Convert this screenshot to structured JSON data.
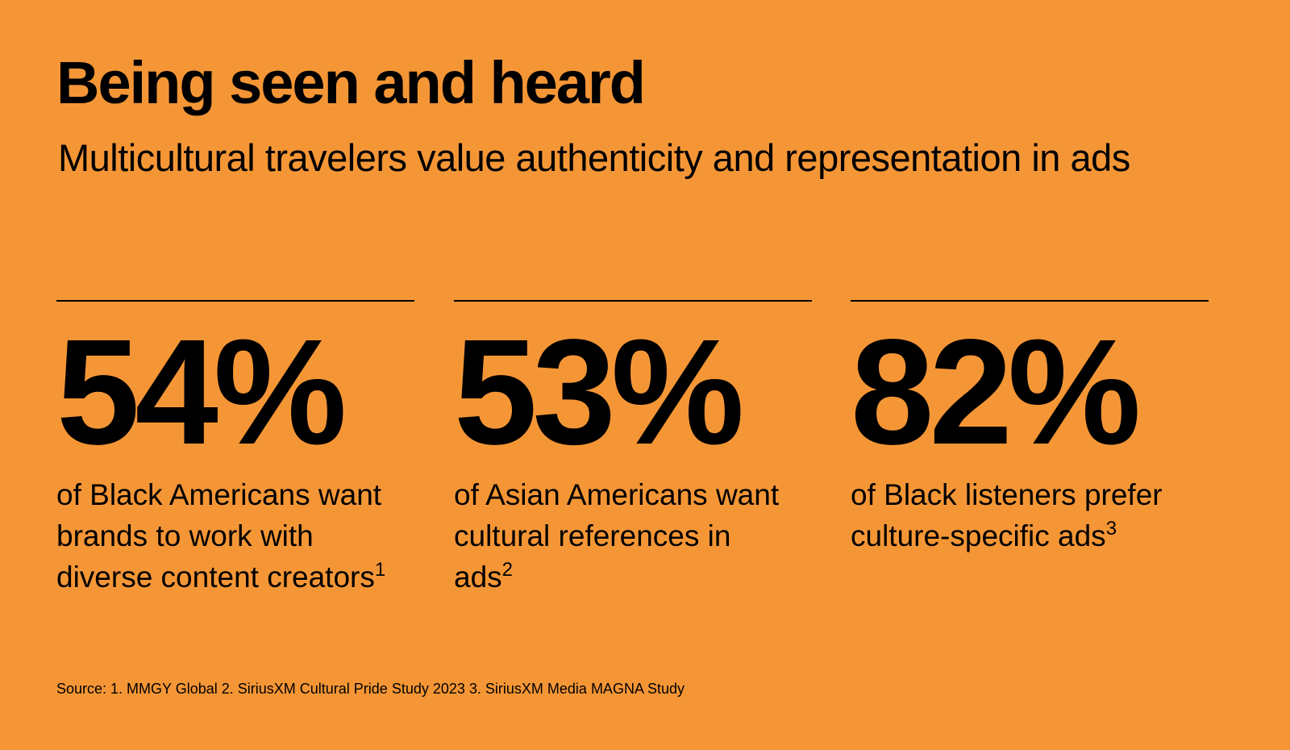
{
  "header": {
    "title": "Being seen and heard",
    "subtitle": "Multicultural travelers value authenticity and representation in ads"
  },
  "stats": [
    {
      "figure": "54%",
      "text": "of Black Americans want brands to work with diverse content creators",
      "note": "1"
    },
    {
      "figure": "53%",
      "text": "of Asian Americans want cultural references in ads",
      "note": "2"
    },
    {
      "figure": "82%",
      "text": "of Black listeners prefer culture-specific ads",
      "note": "3"
    }
  ],
  "footer": {
    "source": "Source: 1. MMGY Global 2. SiriusXM Cultural Pride Study 2023 3. SiriusXM Media MAGNA Study"
  }
}
